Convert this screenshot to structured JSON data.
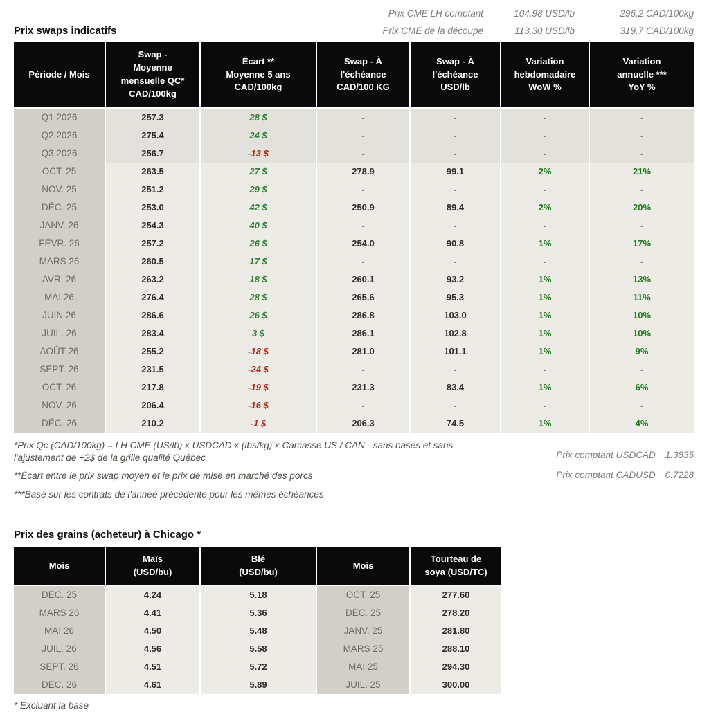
{
  "colors": {
    "positive_green": "#2f7d33",
    "negative_red": "#b02c1e",
    "percent_green": "#1e7b1e",
    "header_black": "#0a0a0a",
    "period_column_bg": "#d2cfc9",
    "data_cell_bg": "#edebe5"
  },
  "cme": {
    "lh": {
      "label": "Prix CME LH comptant",
      "usd": "104.98 USD/lb",
      "cad": "296.2 CAD/100kg"
    },
    "cutout": {
      "label": "Prix CME de la découpe",
      "usd": "113.30 USD/lb",
      "cad": "319.7 CAD/100kg"
    }
  },
  "swaps_table": {
    "title": "Prix swaps indicatifs",
    "columns": [
      "Période / Mois",
      "Swap -\nMoyenne\nmensuelle QC*\nCAD/100kg",
      "Écart **\nMoyenne 5 ans\nCAD/100kg",
      "Swap - À\nl'échéance\nCAD/100 KG",
      "Swap - À\nl'échéance\nUSD/lb",
      "Variation\nhebdomadaire\nWoW %",
      "Variation\nannuelle ***\nYoY %"
    ],
    "rows": [
      {
        "period": "Q1 2026",
        "avg": "257.3",
        "ecart": "28 $",
        "ecart_sign": "pos",
        "cad": "-",
        "usd": "-",
        "wow": "-",
        "yoy": "-",
        "quarter": true
      },
      {
        "period": "Q2 2026",
        "avg": "275.4",
        "ecart": "24 $",
        "ecart_sign": "pos",
        "cad": "-",
        "usd": "-",
        "wow": "-",
        "yoy": "-",
        "quarter": true
      },
      {
        "period": "Q3 2026",
        "avg": "256.7",
        "ecart": "-13 $",
        "ecart_sign": "neg",
        "cad": "-",
        "usd": "-",
        "wow": "-",
        "yoy": "-",
        "quarter": true
      },
      {
        "period": "OCT. 25",
        "avg": "263.5",
        "ecart": "27 $",
        "ecart_sign": "pos",
        "cad": "278.9",
        "usd": "99.1",
        "wow": "2%",
        "yoy": "21%",
        "quarter": false
      },
      {
        "period": "NOV. 25",
        "avg": "251.2",
        "ecart": "29 $",
        "ecart_sign": "pos",
        "cad": "-",
        "usd": "-",
        "wow": "-",
        "yoy": "-",
        "quarter": false
      },
      {
        "period": "DÉC. 25",
        "avg": "253.0",
        "ecart": "42 $",
        "ecart_sign": "pos",
        "cad": "250.9",
        "usd": "89.4",
        "wow": "2%",
        "yoy": "20%",
        "quarter": false
      },
      {
        "period": "JANV. 26",
        "avg": "254.3",
        "ecart": "40 $",
        "ecart_sign": "pos",
        "cad": "-",
        "usd": "-",
        "wow": "-",
        "yoy": "-",
        "quarter": false
      },
      {
        "period": "FÉVR. 26",
        "avg": "257.2",
        "ecart": "26 $",
        "ecart_sign": "pos",
        "cad": "254.0",
        "usd": "90.8",
        "wow": "1%",
        "yoy": "17%",
        "quarter": false
      },
      {
        "period": "MARS 26",
        "avg": "260.5",
        "ecart": "17 $",
        "ecart_sign": "pos",
        "cad": "-",
        "usd": "-",
        "wow": "-",
        "yoy": "-",
        "quarter": false
      },
      {
        "period": "AVR. 26",
        "avg": "263.2",
        "ecart": "18 $",
        "ecart_sign": "pos",
        "cad": "260.1",
        "usd": "93.2",
        "wow": "1%",
        "yoy": "13%",
        "quarter": false
      },
      {
        "period": "MAI 26",
        "avg": "276.4",
        "ecart": "28 $",
        "ecart_sign": "pos",
        "cad": "265.6",
        "usd": "95.3",
        "wow": "1%",
        "yoy": "11%",
        "quarter": false
      },
      {
        "period": "JUIN 26",
        "avg": "286.6",
        "ecart": "26 $",
        "ecart_sign": "pos",
        "cad": "286.8",
        "usd": "103.0",
        "wow": "1%",
        "yoy": "10%",
        "quarter": false
      },
      {
        "period": "JUIL. 26",
        "avg": "283.4",
        "ecart": "3 $",
        "ecart_sign": "pos",
        "cad": "286.1",
        "usd": "102.8",
        "wow": "1%",
        "yoy": "10%",
        "quarter": false
      },
      {
        "period": "AOÛT 26",
        "avg": "255.2",
        "ecart": "-18 $",
        "ecart_sign": "neg",
        "cad": "281.0",
        "usd": "101.1",
        "wow": "1%",
        "yoy": "9%",
        "quarter": false
      },
      {
        "period": "SEPT. 26",
        "avg": "231.5",
        "ecart": "-24 $",
        "ecart_sign": "neg",
        "cad": "-",
        "usd": "-",
        "wow": "-",
        "yoy": "-",
        "quarter": false
      },
      {
        "period": "OCT. 26",
        "avg": "217.8",
        "ecart": "-19 $",
        "ecart_sign": "neg",
        "cad": "231.3",
        "usd": "83.4",
        "wow": "1%",
        "yoy": "6%",
        "quarter": false
      },
      {
        "period": "NOV. 26",
        "avg": "206.4",
        "ecart": "-16 $",
        "ecart_sign": "neg",
        "cad": "-",
        "usd": "-",
        "wow": "-",
        "yoy": "-",
        "quarter": false
      },
      {
        "period": "DÉC. 26",
        "avg": "210.2",
        "ecart": "-1 $",
        "ecart_sign": "neg",
        "cad": "206.3",
        "usd": "74.5",
        "wow": "1%",
        "yoy": "4%",
        "quarter": false
      }
    ]
  },
  "footnotes": {
    "fn1": "*Prix Qc (CAD/100kg) = LH CME (US/lb) x USDCAD x (lbs/kg) x Carcasse US / CAN - sans bases et sans l'ajustement de +2$ de la grille qualité Québec",
    "fn2": "**Écart entre le prix swap moyen et le prix de mise en marché des porcs",
    "fn3": "***Basé sur les contrats de l'année précédente pour les mêmes échéances"
  },
  "spot": {
    "usdcad_label": "Prix comptant USDCAD",
    "usdcad_value": "1.3835",
    "cadusd_label": "Prix comptant CADUSD",
    "cadusd_value": "0.7228"
  },
  "grains_table": {
    "title": "Prix des grains (acheteur) à Chicago *",
    "columns": [
      "Mois",
      "Maïs\n(USD/bu)",
      "Blé\n(USD/bu)",
      "Mois",
      "Tourteau de\nsoya (USD/TC)"
    ],
    "rows": [
      {
        "month1": "DÉC. 25",
        "corn": "4.24",
        "wheat": "5.18",
        "month2": "OCT. 25",
        "soymeal": "277.60"
      },
      {
        "month1": "MARS 26",
        "corn": "4.41",
        "wheat": "5.36",
        "month2": "DÉC. 25",
        "soymeal": "278.20"
      },
      {
        "month1": "MAI 26",
        "corn": "4.50",
        "wheat": "5.48",
        "month2": "JANV. 25",
        "soymeal": "281.80"
      },
      {
        "month1": "JUIL. 26",
        "corn": "4.56",
        "wheat": "5.58",
        "month2": "MARS 25",
        "soymeal": "288.10"
      },
      {
        "month1": "SEPT. 26",
        "corn": "4.51",
        "wheat": "5.72",
        "month2": "MAI 25",
        "soymeal": "294.30"
      },
      {
        "month1": "DÉC. 26",
        "corn": "4.61",
        "wheat": "5.89",
        "month2": "JUIL. 25",
        "soymeal": "300.00"
      }
    ],
    "note": "* Excluant la base"
  }
}
